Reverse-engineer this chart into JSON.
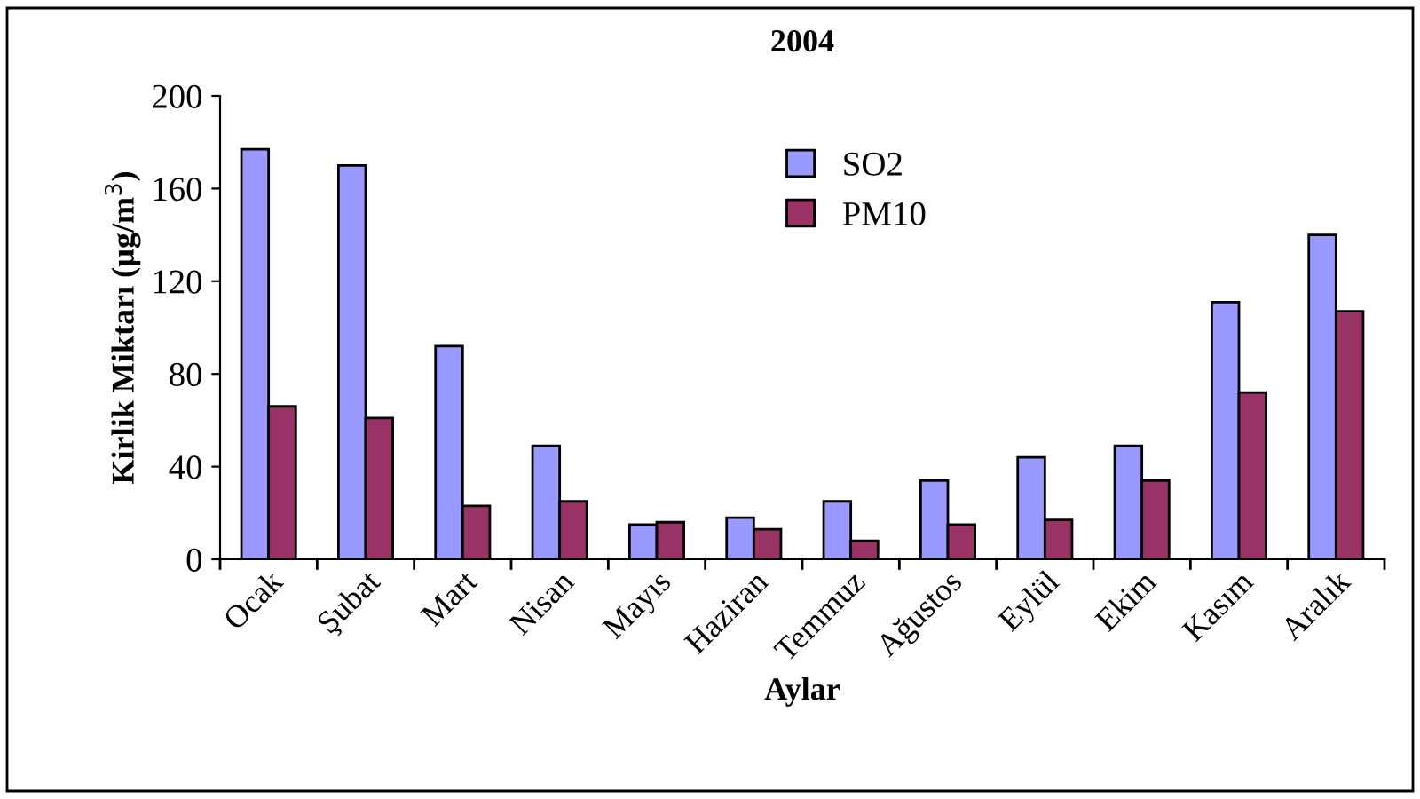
{
  "chart_data": {
    "type": "bar",
    "title": "2004",
    "xlabel": "Aylar",
    "ylabel": "Kirlik Miktarı (µg/m$^{3}$)",
    "categories": [
      "Ocak",
      "Şubat",
      "Mart",
      "Nisan",
      "Mayıs",
      "Haziran",
      "Temmuz",
      "Ağustos",
      "Eylül",
      "Ekim",
      "Kasım",
      "Aralık"
    ],
    "series": [
      {
        "name": "SO2",
        "color": "#9999ff",
        "values": [
          177,
          170,
          92,
          49,
          15,
          18,
          25,
          34,
          44,
          49,
          111,
          140
        ]
      },
      {
        "name": "PM10",
        "color": "#993366",
        "values": [
          66,
          61,
          23,
          25,
          16,
          13,
          8,
          15,
          17,
          34,
          72,
          107
        ]
      }
    ],
    "ylim": [
      0,
      200
    ],
    "yticks": [
      0,
      40,
      80,
      120,
      160,
      200
    ],
    "grid": false,
    "legend": "top"
  }
}
